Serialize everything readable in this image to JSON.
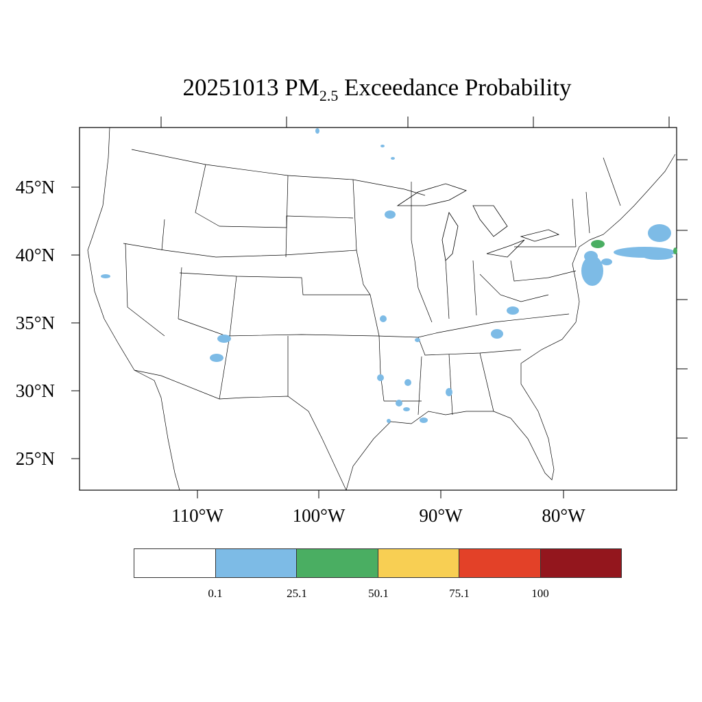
{
  "title": {
    "date": "20251013",
    "pollutant_main": "PM",
    "pollutant_sub": "2.5",
    "rest": "Exceedance Probability"
  },
  "lat_labels": [
    "45°N",
    "40°N",
    "35°N",
    "30°N",
    "25°N"
  ],
  "lon_labels": [
    "110°W",
    "100°W",
    "90°W",
    "80°W"
  ],
  "colorbar": {
    "colors": [
      "#ffffff",
      "#7dbbe6",
      "#4aae62",
      "#f8cf53",
      "#e34128",
      "#93161d"
    ],
    "labels": [
      "0.1",
      "25.1",
      "50.1",
      "75.1",
      "100"
    ]
  },
  "map": {
    "region": "Continental United States",
    "probability_areas": [
      {
        "class": "0.1-25.1",
        "color": "#7dbbe6"
      },
      {
        "class": "25.1-50.1",
        "color": "#4aae62"
      }
    ]
  }
}
